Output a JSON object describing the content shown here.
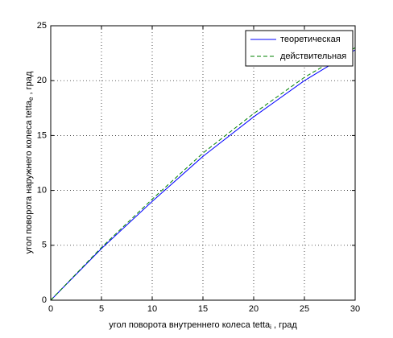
{
  "chart_data": {
    "type": "line",
    "xlabel": {
      "text": "угол поворота внутреннего колеса tetta",
      "sub": "i",
      "suffix": " , град"
    },
    "ylabel": {
      "text": "угол поворота наружнего колеса tetta",
      "sub": "e",
      "suffix": " , град"
    },
    "x": [
      0,
      5,
      10,
      15,
      20,
      25,
      30
    ],
    "series": [
      {
        "name": "теоретическая",
        "color": "#0000ff",
        "dash": false,
        "values": [
          0,
          4.7,
          9.0,
          13.1,
          16.7,
          20.0,
          22.8
        ]
      },
      {
        "name": "действительная",
        "color": "#008000",
        "dash": true,
        "values": [
          0,
          4.8,
          9.2,
          13.4,
          17.0,
          20.3,
          23.0
        ]
      }
    ],
    "xlim": [
      0,
      30
    ],
    "xticks": [
      0,
      5,
      10,
      15,
      20,
      25,
      30
    ],
    "ylim": [
      0,
      25
    ],
    "yticks": [
      0,
      5,
      10,
      15,
      20,
      25
    ],
    "grid": true,
    "legend": "northeast"
  }
}
